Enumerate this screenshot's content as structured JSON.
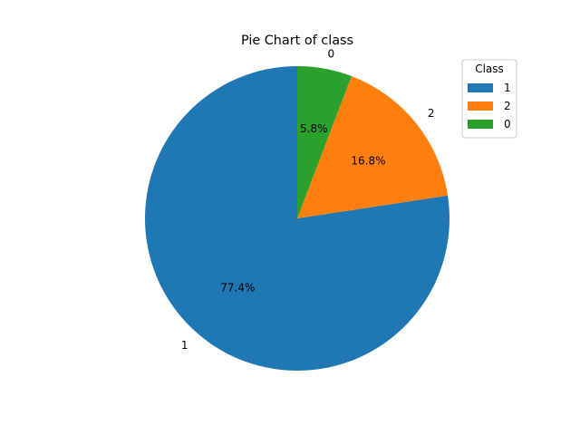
{
  "chart_data": {
    "type": "pie",
    "title": "Pie Chart of class",
    "legend": {
      "title": "Class",
      "placement": "top-right"
    },
    "slices": [
      {
        "label": "1",
        "percent": 77.4,
        "percent_label": "77.4%",
        "color": "#1f77b4"
      },
      {
        "label": "2",
        "percent": 16.8,
        "percent_label": "16.8%",
        "color": "#ff7f0e"
      },
      {
        "label": "0",
        "percent": 5.8,
        "percent_label": "5.8%",
        "color": "#2ca02c"
      }
    ]
  }
}
